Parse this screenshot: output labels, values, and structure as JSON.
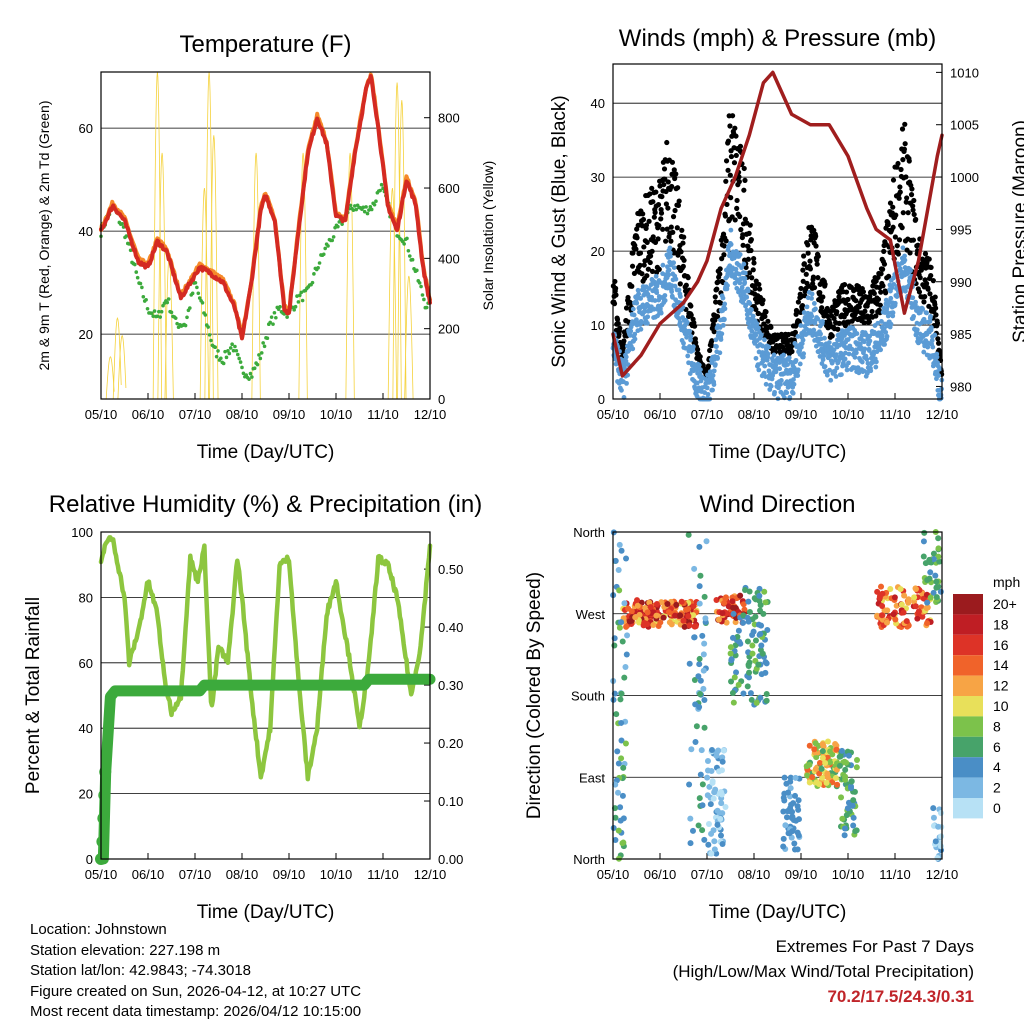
{
  "chart_data": [
    {
      "type": "line",
      "title": "Temperature (F)",
      "xlabel": "Time (Day/UTC)",
      "ylabel": "2m & 9m T (Red, Orange) & 2m Td (Green)",
      "y2label": "Solar Insolation (Yellow)",
      "xticks": [
        "05/10",
        "06/10",
        "07/10",
        "08/10",
        "09/10",
        "10/10",
        "11/10",
        "12/10"
      ],
      "yticks": [
        "20",
        "40",
        "60"
      ],
      "y2ticks": [
        "0",
        "200",
        "400",
        "600",
        "800"
      ],
      "ylim": [
        7.4,
        70.9
      ],
      "y2lim": [
        0,
        930
      ],
      "series": [
        {
          "name": "2m T",
          "color": "#d42a22",
          "x": [
            0,
            0.25,
            0.5,
            0.8,
            1.0,
            1.2,
            1.4,
            1.6,
            1.7,
            1.9,
            2.1,
            2.3,
            2.6,
            2.85,
            3.0,
            3.2,
            3.4,
            3.5,
            3.7,
            3.9,
            4.0,
            4.2,
            4.4,
            4.6,
            4.8,
            5.0,
            5.2,
            5.4,
            5.65,
            5.75,
            5.9,
            6.1,
            6.3,
            6.5,
            6.7,
            6.85,
            7.0
          ],
          "y": [
            40,
            45,
            42,
            34,
            33,
            38,
            36,
            30,
            27,
            30,
            33,
            32,
            30,
            25,
            19,
            30,
            44,
            47,
            42,
            25,
            24,
            40,
            55,
            62,
            57,
            43,
            42,
            55,
            68,
            70,
            60,
            45,
            40,
            50,
            45,
            33,
            26
          ]
        },
        {
          "name": "2m Td",
          "color": "#3caa3c",
          "x": [
            0,
            0.25,
            0.5,
            0.8,
            1.0,
            1.2,
            1.4,
            1.6,
            1.8,
            2.0,
            2.2,
            2.4,
            2.6,
            2.8,
            3.0,
            3.2,
            3.4,
            3.6,
            3.8,
            4.0,
            4.2,
            4.4,
            4.6,
            4.8,
            5.0,
            5.2,
            5.4,
            5.6,
            5.8,
            5.95,
            6.1,
            6.3,
            6.5,
            6.7,
            6.9,
            7.0
          ],
          "y": [
            40,
            45,
            40,
            30,
            25,
            23,
            27,
            22,
            22,
            30,
            24,
            17,
            15,
            18,
            13,
            12,
            16,
            22,
            25,
            24,
            27,
            28,
            33,
            37,
            40,
            43,
            45,
            44,
            45,
            49,
            45,
            40,
            38,
            32,
            26,
            25
          ]
        },
        {
          "name": "Solar Insolation",
          "color": "#f5d23c",
          "axis": "right",
          "peaks": [
            [
              0.2,
              120
            ],
            [
              0.35,
              230
            ],
            [
              0.45,
              180
            ],
            [
              1.2,
              930
            ],
            [
              1.3,
              700
            ],
            [
              1.45,
              400
            ],
            [
              2.2,
              600
            ],
            [
              2.3,
              930
            ],
            [
              2.4,
              750
            ],
            [
              3.3,
              700
            ],
            [
              4.3,
              700
            ],
            [
              5.3,
              700
            ],
            [
              6.2,
              600
            ],
            [
              6.3,
              900
            ],
            [
              6.4,
              850
            ],
            [
              6.55,
              350
            ]
          ]
        }
      ]
    },
    {
      "type": "scatter",
      "title": "Winds (mph) & Pressure (mb)",
      "xlabel": "Time (Day/UTC)",
      "ylabel": "Sonic Wind & Gust (Blue, Black)",
      "y2label": "Station Pressure (Maroon)",
      "xticks": [
        "05/10",
        "06/10",
        "07/10",
        "08/10",
        "09/10",
        "10/10",
        "11/10",
        "12/10"
      ],
      "yticks": [
        "0",
        "10",
        "20",
        "30",
        "40"
      ],
      "y2ticks": [
        "980",
        "985",
        "990",
        "995",
        "1000",
        "1005",
        "1010"
      ],
      "ylim": [
        0,
        45.3
      ],
      "y2lim": [
        978.8,
        1010.8
      ],
      "wind": {
        "color": "#5b9bd5",
        "x": [
          0,
          0.2,
          0.5,
          1.0,
          1.2,
          1.5,
          1.8,
          2.0,
          2.3,
          2.5,
          2.8,
          3.0,
          3.4,
          3.8,
          4.2,
          4.6,
          5.0,
          5.4,
          5.7,
          6.0,
          6.2,
          6.5,
          6.8,
          7.0
        ],
        "y": [
          8,
          2,
          12,
          14,
          18,
          10,
          2,
          0,
          10,
          20,
          15,
          8,
          3,
          3,
          12,
          5,
          7,
          6,
          8,
          15,
          18,
          10,
          8,
          0
        ]
      },
      "gust": {
        "color": "#000000"
      },
      "pressure": {
        "color": "#a01e1e",
        "x": [
          0,
          0.2,
          0.6,
          1.0,
          1.5,
          1.8,
          2.0,
          2.3,
          2.6,
          2.9,
          3.2,
          3.4,
          3.8,
          4.2,
          4.6,
          5.0,
          5.4,
          5.6,
          5.9,
          6.2,
          6.5,
          6.9,
          7.0
        ],
        "y": [
          985,
          981,
          983,
          986,
          988,
          990,
          992,
          997,
          1000,
          1004,
          1009,
          1010,
          1006,
          1005,
          1005,
          1002,
          997,
          995,
          994,
          987,
          992,
          1002,
          1004
        ]
      }
    },
    {
      "type": "line",
      "title": "Relative Humidity (%) & Precipitation (in)",
      "xlabel": "Time (Day/UTC)",
      "ylabel": "Percent & Total Rainfall",
      "xticks": [
        "05/10",
        "06/10",
        "07/10",
        "08/10",
        "09/10",
        "10/10",
        "11/10",
        "12/10"
      ],
      "yticks": [
        "0",
        "20",
        "40",
        "60",
        "80",
        "100"
      ],
      "y2ticks": [
        "0.00",
        "0.10",
        "0.20",
        "0.30",
        "0.40",
        "0.50"
      ],
      "ylim": [
        0,
        100
      ],
      "y2lim": [
        0,
        0.564
      ],
      "series": [
        {
          "name": "Relative Humidity",
          "color": "#8dc63f",
          "x": [
            0,
            0.1,
            0.25,
            0.5,
            0.6,
            0.8,
            1.0,
            1.2,
            1.35,
            1.5,
            1.7,
            1.9,
            2.05,
            2.2,
            2.35,
            2.5,
            2.7,
            2.9,
            3.0,
            3.2,
            3.4,
            3.6,
            3.8,
            4.0,
            4.2,
            4.4,
            4.6,
            4.8,
            5.0,
            5.3,
            5.5,
            5.7,
            5.9,
            6.1,
            6.3,
            6.6,
            6.8,
            7.0
          ],
          "y": [
            90,
            97,
            98,
            80,
            60,
            70,
            85,
            75,
            55,
            45,
            50,
            92,
            85,
            95,
            45,
            65,
            60,
            92,
            80,
            50,
            25,
            40,
            90,
            92,
            55,
            25,
            40,
            75,
            85,
            60,
            40,
            60,
            92,
            90,
            80,
            50,
            65,
            96
          ]
        },
        {
          "name": "Total Rainfall",
          "color": "#3caa3c",
          "axis": "right",
          "x": [
            0,
            0.05,
            0.1,
            0.2,
            0.3,
            2.1,
            2.2,
            5.6,
            5.7,
            7.0
          ],
          "y": [
            0,
            0,
            0.15,
            0.28,
            0.29,
            0.29,
            0.3,
            0.3,
            0.31,
            0.31
          ]
        }
      ]
    },
    {
      "type": "scatter",
      "title": "Wind Direction",
      "xlabel": "Time (Day/UTC)",
      "ylabel": "Direction (Colored By Speed)",
      "xticks": [
        "05/10",
        "06/10",
        "07/10",
        "08/10",
        "09/10",
        "10/10",
        "11/10",
        "12/10"
      ],
      "yticks": [
        "North",
        "East",
        "South",
        "West",
        "North"
      ],
      "ylim": [
        0,
        360
      ],
      "legend": {
        "title": "mph",
        "labels": [
          "20+",
          "18",
          "16",
          "14",
          "12",
          "10",
          "8",
          "6",
          "4",
          "2",
          "0"
        ],
        "colors": [
          "#9b1b1e",
          "#bf1e24",
          "#dd3327",
          "#f0632a",
          "#f7a445",
          "#e8e05a",
          "#7cc24b",
          "#47a36a",
          "#4a8ec6",
          "#7cb8e3",
          "#b7e1f5"
        ]
      },
      "clusters": [
        {
          "x": [
            0.2,
            1.8
          ],
          "dir": [
            255,
            285
          ],
          "spd": [
            10,
            20
          ],
          "n": 160
        },
        {
          "x": [
            2.2,
            2.8
          ],
          "dir": [
            260,
            290
          ],
          "spd": [
            12,
            20
          ],
          "n": 60
        },
        {
          "x": [
            0,
            0.3
          ],
          "dir": [
            0,
            360
          ],
          "spd": [
            2,
            8
          ],
          "n": 60
        },
        {
          "x": [
            1.6,
            2.0
          ],
          "dir": [
            0,
            360
          ],
          "spd": [
            2,
            6
          ],
          "n": 50
        },
        {
          "x": [
            2.0,
            2.4
          ],
          "dir": [
            0,
            120
          ],
          "spd": [
            0,
            4
          ],
          "n": 60
        },
        {
          "x": [
            2.5,
            3.3
          ],
          "dir": [
            170,
            300
          ],
          "spd": [
            3,
            8
          ],
          "n": 100
        },
        {
          "x": [
            3.6,
            4.0
          ],
          "dir": [
            10,
            90
          ],
          "spd": [
            2,
            5
          ],
          "n": 50
        },
        {
          "x": [
            4.1,
            4.8
          ],
          "dir": [
            80,
            130
          ],
          "spd": [
            6,
            14
          ],
          "n": 100
        },
        {
          "x": [
            4.8,
            5.2
          ],
          "dir": [
            20,
            120
          ],
          "spd": [
            3,
            8
          ],
          "n": 60
        },
        {
          "x": [
            5.6,
            6.8
          ],
          "dir": [
            255,
            300
          ],
          "spd": [
            10,
            18
          ],
          "n": 100
        },
        {
          "x": [
            6.6,
            7.0
          ],
          "dir": [
            280,
            360
          ],
          "spd": [
            4,
            8
          ],
          "n": 40
        },
        {
          "x": [
            6.8,
            7.0
          ],
          "dir": [
            0,
            60
          ],
          "spd": [
            0,
            4
          ],
          "n": 20
        }
      ]
    }
  ],
  "info": {
    "location": "Location: Johnstown",
    "elevation": "Station elevation: 227.198 m",
    "latlon": "Station lat/lon: 42.9843; -74.3018",
    "created": "Figure created on Sun, 2026-04-12, at 10:27 UTC",
    "timestamp": "Most recent data timestamp: 2026/04/12 10:15:00"
  },
  "extremes": {
    "title": "Extremes For Past 7 Days",
    "subtitle": "(High/Low/Max Wind/Total Precipitation)",
    "values": "70.2/17.5/24.3/0.31"
  }
}
